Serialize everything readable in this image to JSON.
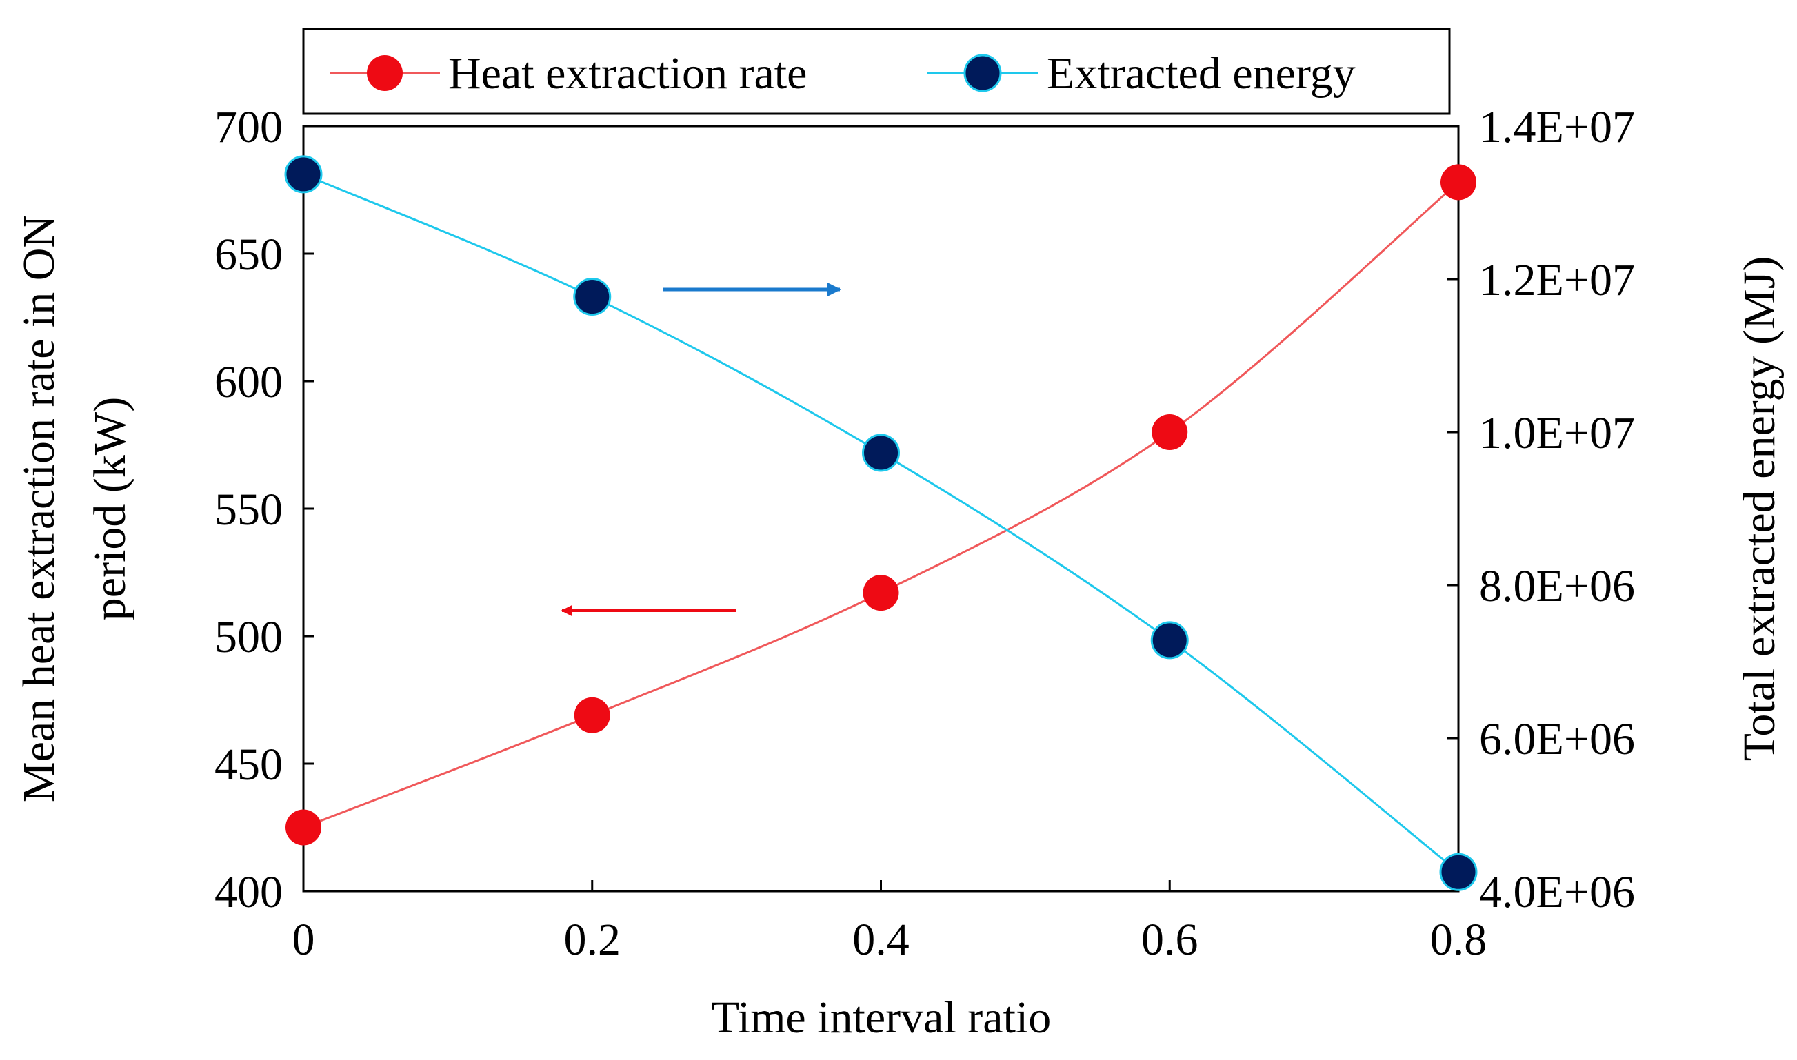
{
  "chart_data": {
    "type": "line",
    "x": [
      0,
      0.2,
      0.4,
      0.6,
      0.8
    ],
    "xlabel": "Time interval ratio",
    "xlim": [
      0,
      0.8
    ],
    "xticks": [
      "0",
      "0.2",
      "0.4",
      "0.6",
      "0.8"
    ],
    "ylabel_left": "Mean heat extraction rate in ON period (kW)",
    "ylabel_left_line1": "Mean heat extraction rate in ON",
    "ylabel_left_line2": "period (kW)",
    "ylim_left": [
      400,
      700
    ],
    "yticks_left": [
      "400",
      "450",
      "500",
      "550",
      "600",
      "650",
      "700"
    ],
    "ylabel_right": "Total extracted energy (MJ)",
    "ylim_right": [
      4000000,
      14000000
    ],
    "yticks_right": [
      "4.0E+06",
      "6.0E+06",
      "8.0E+06",
      "1.0E+07",
      "1.2E+07",
      "1.4E+07"
    ],
    "series": [
      {
        "name": "Heat extraction rate",
        "axis": "left",
        "values": [
          425,
          469,
          517,
          580,
          678
        ],
        "line_color": "#f0585a",
        "marker_color": "#ee0a14"
      },
      {
        "name": "Extracted energy",
        "axis": "right",
        "values": [
          13370000,
          11770000,
          9730000,
          7280000,
          4250000
        ],
        "line_color": "#1ec8ec",
        "marker_color": "#001a5a"
      }
    ],
    "annotations": [
      {
        "type": "arrow",
        "direction": "right",
        "meaning": "Extracted energy uses right axis",
        "color": "#1a7acd"
      },
      {
        "type": "arrow",
        "direction": "left",
        "meaning": "Heat extraction rate uses left axis",
        "color": "#ee0a14"
      }
    ],
    "legend": "top",
    "grid": false
  }
}
